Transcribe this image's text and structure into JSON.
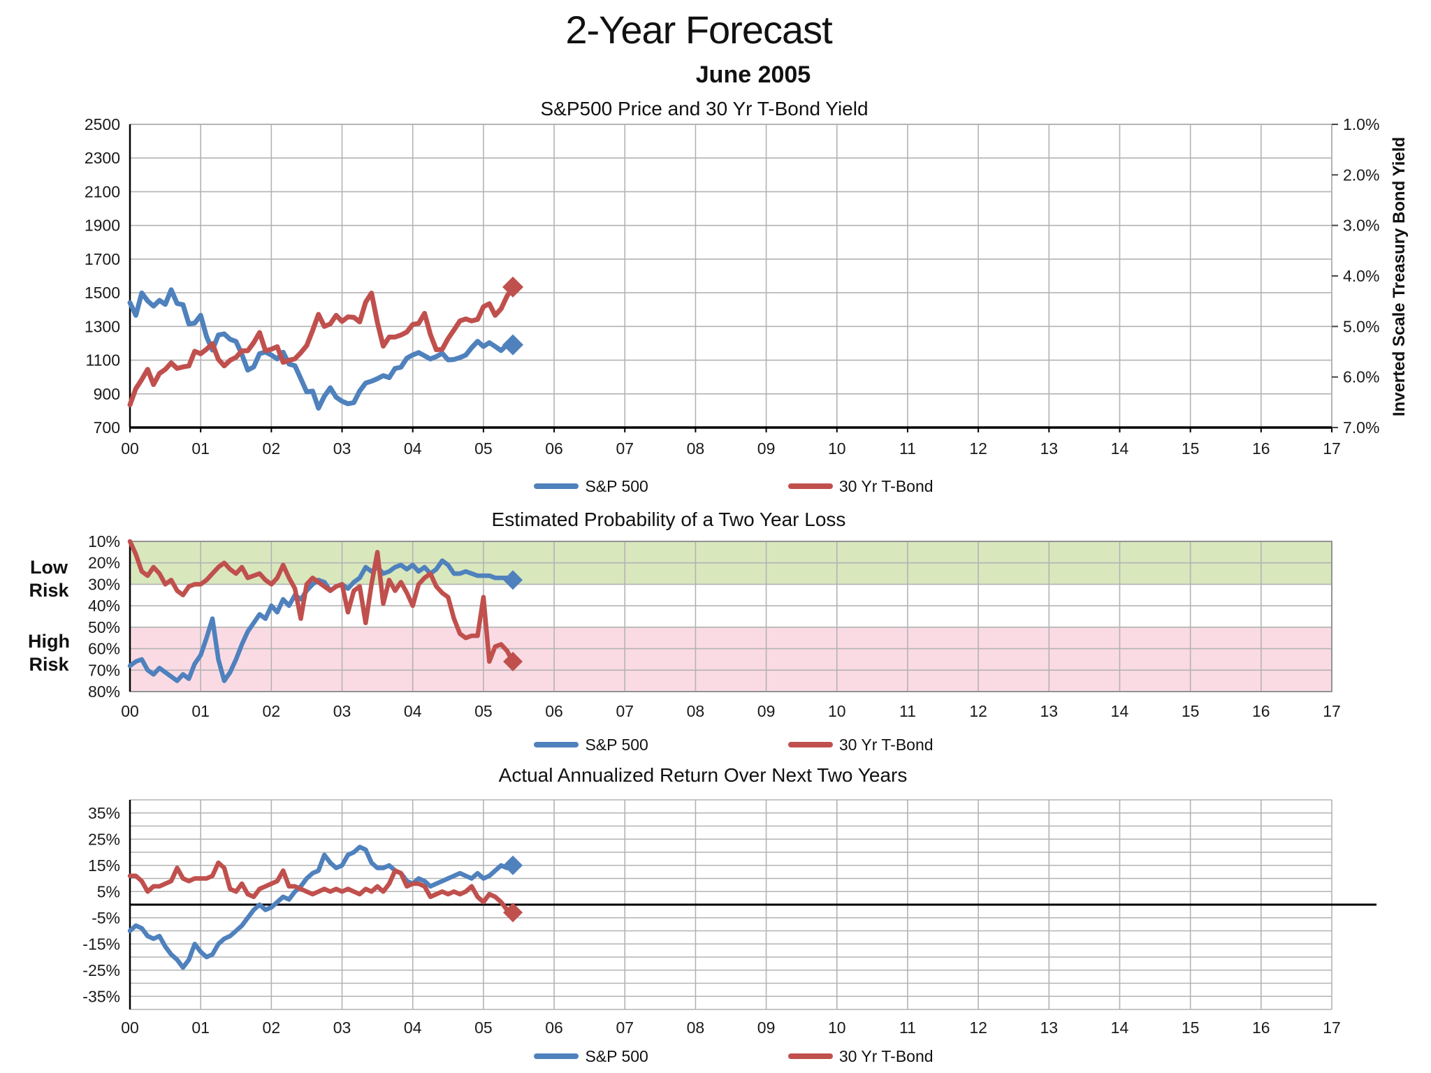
{
  "page": {
    "title": "2-Year Forecast",
    "subtitle": "June 2005"
  },
  "colors": {
    "sp500": "#4F81BD",
    "tbond": "#C0504D",
    "grid": "#b3b3b3",
    "frame": "#8c8c8c",
    "axis": "#000000",
    "zero_line": "#000000",
    "band_green": "#d9e7bd",
    "band_pink": "#fadbe4",
    "text": "#1a1a1a"
  },
  "legend": {
    "sp500": "S&P 500",
    "tbond": "30 Yr T-Bond"
  },
  "x_axis": {
    "min": 0,
    "max": 17,
    "ticks": [
      "00",
      "01",
      "02",
      "03",
      "04",
      "05",
      "06",
      "07",
      "08",
      "09",
      "10",
      "11",
      "12",
      "13",
      "14",
      "15",
      "16",
      "17"
    ],
    "points_per_year": 12
  },
  "chart_data": [
    {
      "type": "line",
      "title": "S&P500 Price and 30 Yr T-Bond Yield",
      "left_axis": {
        "label": "",
        "min": 700,
        "max": 2500,
        "ticks": [
          2500,
          2300,
          2100,
          1900,
          1700,
          1500,
          1300,
          1100,
          900,
          700
        ]
      },
      "right_axis": {
        "title": "Inverted Scale Treasury Bond Yield",
        "inverted": true,
        "min_pct": 1.0,
        "max_pct": 7.0,
        "ticks": [
          "1.0%",
          "2.0%",
          "3.0%",
          "4.0%",
          "5.0%",
          "6.0%",
          "7.0%"
        ]
      },
      "series": [
        {
          "name": "S&P 500",
          "color_key": "sp500",
          "axis": "left",
          "end_marker": "diamond",
          "values": [
            1441,
            1366,
            1499,
            1452,
            1421,
            1455,
            1431,
            1518,
            1436,
            1429,
            1315,
            1320,
            1366,
            1240,
            1160,
            1249,
            1256,
            1224,
            1211,
            1134,
            1041,
            1060,
            1139,
            1148,
            1130,
            1107,
            1147,
            1077,
            1067,
            990,
            912,
            916,
            815,
            886,
            936,
            880,
            856,
            841,
            848,
            917,
            964,
            975,
            990,
            1008,
            996,
            1051,
            1058,
            1112,
            1131,
            1145,
            1126,
            1107,
            1121,
            1141,
            1102,
            1104,
            1115,
            1130,
            1174,
            1212,
            1181,
            1204,
            1181,
            1157,
            1192,
            1191
          ]
        },
        {
          "name": "30 Yr T-Bond",
          "color_key": "tbond",
          "axis": "right",
          "unit": "percent_yield",
          "end_marker": "diamond",
          "values": [
            6.55,
            6.23,
            6.05,
            5.85,
            6.15,
            5.93,
            5.85,
            5.72,
            5.83,
            5.8,
            5.78,
            5.49,
            5.54,
            5.45,
            5.34,
            5.65,
            5.78,
            5.67,
            5.61,
            5.48,
            5.48,
            5.32,
            5.12,
            5.48,
            5.45,
            5.4,
            5.71,
            5.67,
            5.64,
            5.52,
            5.38,
            5.08,
            4.76,
            5.0,
            4.95,
            4.78,
            4.9,
            4.81,
            4.82,
            4.91,
            4.52,
            4.34,
            4.92,
            5.39,
            5.21,
            5.21,
            5.17,
            5.11,
            4.96,
            4.94,
            4.74,
            5.16,
            5.46,
            5.45,
            5.24,
            5.07,
            4.89,
            4.85,
            4.89,
            4.86,
            4.61,
            4.55,
            4.78,
            4.65,
            4.4,
            4.22
          ]
        }
      ]
    },
    {
      "type": "line",
      "title": "Estimated Probability of a Two Year Loss",
      "left_axis": {
        "min": 10,
        "max": 80,
        "inverted": true,
        "tick_values": [
          10,
          20,
          30,
          40,
          50,
          60,
          70,
          80
        ],
        "ticks": [
          "10%",
          "20%",
          "30%",
          "40%",
          "50%",
          "60%",
          "70%",
          "80%"
        ]
      },
      "bands": [
        {
          "label": "Low Risk",
          "from": 10,
          "to": 30,
          "color_key": "band_green"
        },
        {
          "label": "High Risk",
          "from": 50,
          "to": 80,
          "color_key": "band_pink"
        }
      ],
      "series": [
        {
          "name": "S&P 500",
          "color_key": "sp500",
          "end_marker": "diamond",
          "values": [
            68,
            66,
            65,
            70,
            72,
            69,
            71,
            73,
            75,
            72,
            74,
            67,
            63,
            55,
            46,
            65,
            75,
            71,
            65,
            58,
            52,
            48,
            44,
            46,
            40,
            43,
            37,
            40,
            35,
            37,
            33,
            30,
            28,
            29,
            33,
            31,
            30,
            32,
            29,
            27,
            22,
            24,
            22,
            25,
            24,
            22,
            21,
            23,
            21,
            24,
            22,
            25,
            23,
            19,
            21,
            25,
            25,
            24,
            25,
            26,
            26,
            26,
            27,
            27,
            27,
            28
          ]
        },
        {
          "name": "30 Yr T-Bond",
          "color_key": "tbond",
          "end_marker": "diamond",
          "values": [
            10,
            16,
            24,
            26,
            22,
            25,
            30,
            28,
            33,
            35,
            31,
            30,
            30,
            28,
            25,
            22,
            20,
            23,
            25,
            22,
            27,
            26,
            25,
            28,
            30,
            27,
            21,
            27,
            32,
            46,
            30,
            27,
            29,
            31,
            33,
            31,
            30,
            43,
            33,
            31,
            48,
            30,
            15,
            39,
            28,
            33,
            29,
            34,
            40,
            30,
            27,
            25,
            31,
            34,
            36,
            46,
            53,
            55,
            54,
            54,
            36,
            66,
            59,
            58,
            61,
            66
          ]
        }
      ]
    },
    {
      "type": "line",
      "title": "Actual Annualized Return Over Next Two Years",
      "left_axis": {
        "min": -40,
        "max": 40,
        "gridline_step": 5,
        "tick_values": [
          35,
          25,
          15,
          5,
          -5,
          -15,
          -25,
          -35
        ],
        "ticks": [
          "35%",
          "25%",
          "15%",
          "5%",
          "-5%",
          "-15%",
          "-25%",
          "-35%"
        ]
      },
      "zero_line": true,
      "series": [
        {
          "name": "S&P 500",
          "color_key": "sp500",
          "end_marker": "diamond",
          "values": [
            -10,
            -8,
            -9,
            -12,
            -13,
            -12,
            -16,
            -19,
            -21,
            -24,
            -21,
            -15,
            -18,
            -20,
            -19,
            -15,
            -13,
            -12,
            -10,
            -8,
            -5,
            -2,
            0,
            -2,
            -1,
            1,
            3,
            2,
            5,
            7,
            10,
            12,
            13,
            19,
            16,
            14,
            15,
            19,
            20,
            22,
            21,
            16,
            14,
            14,
            15,
            13,
            12,
            9,
            8,
            10,
            9,
            7,
            8,
            9,
            10,
            11,
            12,
            11,
            10,
            12,
            10,
            11,
            13,
            15,
            14,
            15
          ]
        },
        {
          "name": "30 Yr T-Bond",
          "color_key": "tbond",
          "end_marker": "diamond",
          "values": [
            11,
            11,
            9,
            5,
            7,
            7,
            8,
            9,
            14,
            10,
            9,
            10,
            10,
            10,
            11,
            16,
            14,
            6,
            5,
            8,
            4,
            3,
            6,
            7,
            8,
            9,
            13,
            7,
            7,
            6,
            5,
            4,
            5,
            6,
            5,
            6,
            5,
            6,
            5,
            4,
            6,
            5,
            7,
            5,
            8,
            13,
            12,
            7,
            8,
            8,
            7,
            3,
            4,
            5,
            4,
            5,
            4,
            5,
            7,
            3,
            1,
            4,
            3,
            1,
            -2,
            -3
          ]
        }
      ]
    }
  ]
}
